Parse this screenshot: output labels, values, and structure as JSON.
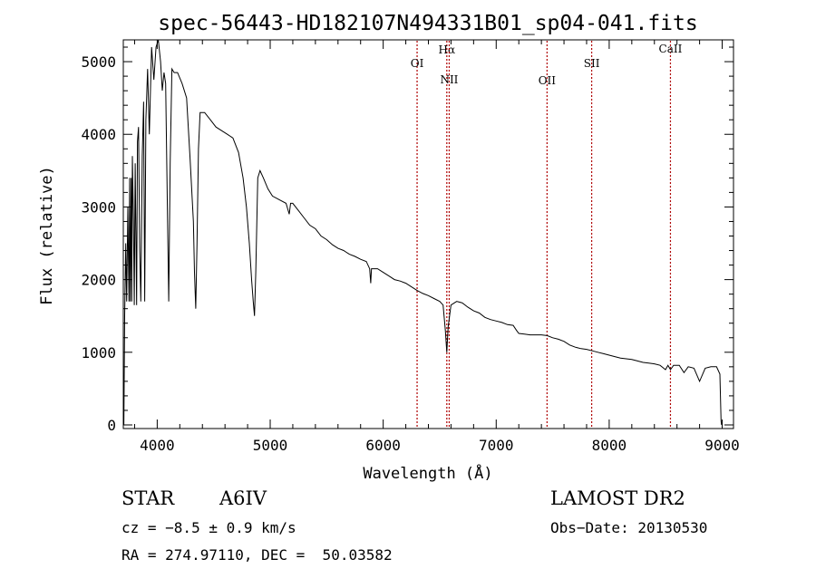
{
  "chart_data": {
    "type": "line",
    "title": "spec-56443-HD182107N494331B01_sp04-041.fits",
    "xlabel": "Wavelength (Å)",
    "ylabel": "Flux (relative)",
    "xlim": [
      3700,
      9100
    ],
    "ylim": [
      -50,
      5300
    ],
    "xticks": [
      4000,
      5000,
      6000,
      7000,
      8000,
      9000
    ],
    "yticks": [
      0,
      1000,
      2000,
      3000,
      4000,
      5000
    ],
    "grid": false,
    "line_color": "#000000",
    "marker_color": "#b00000",
    "lines": [
      {
        "label": "OI",
        "x": 6300
      },
      {
        "label": "Hα",
        "x": 6563
      },
      {
        "label": "NII",
        "x": 6584
      },
      {
        "label": "OII",
        "x": 7450
      },
      {
        "label": "SII",
        "x": 7845
      },
      {
        "label": "CaII",
        "x": 8542
      }
    ],
    "series": [
      {
        "x": [
          3705,
          3712,
          3722,
          3730,
          3740,
          3750,
          3756,
          3762,
          3770,
          3775,
          3780,
          3790,
          3797,
          3805,
          3818,
          3825,
          3835,
          3845,
          3855,
          3868,
          3880,
          3889,
          3900,
          3915,
          3930,
          3950,
          3970,
          3990,
          4010,
          4030,
          4045,
          4060,
          4075,
          4090,
          4102,
          4115,
          4130,
          4150,
          4180,
          4220,
          4260,
          4290,
          4320,
          4330,
          4341,
          4352,
          4365,
          4380,
          4420,
          4470,
          4520,
          4570,
          4620,
          4670,
          4720,
          4760,
          4790,
          4815,
          4835,
          4850,
          4861,
          4872,
          4890,
          4910,
          4940,
          4980,
          5020,
          5080,
          5140,
          5168,
          5180,
          5200,
          5250,
          5300,
          5350,
          5400,
          5450,
          5500,
          5550,
          5600,
          5650,
          5700,
          5750,
          5800,
          5850,
          5880,
          5890,
          5896,
          5910,
          5950,
          6000,
          6050,
          6100,
          6150,
          6200,
          6250,
          6300,
          6350,
          6400,
          6450,
          6500,
          6530,
          6550,
          6563,
          6575,
          6600,
          6650,
          6700,
          6750,
          6800,
          6850,
          6900,
          6950,
          7000,
          7050,
          7100,
          7150,
          7180,
          7200,
          7250,
          7300,
          7350,
          7400,
          7450,
          7500,
          7550,
          7600,
          7650,
          7700,
          7750,
          7800,
          7850,
          7900,
          7950,
          8000,
          8050,
          8100,
          8150,
          8200,
          8250,
          8300,
          8350,
          8400,
          8450,
          8498,
          8520,
          8542,
          8570,
          8620,
          8662,
          8700,
          8750,
          8800,
          8850,
          8900,
          8950,
          8980,
          8990,
          8995
        ],
        "values": [
          0,
          1500,
          2500,
          1700,
          3000,
          1700,
          3400,
          1700,
          3400,
          1700,
          3700,
          2800,
          1650,
          3600,
          1650,
          3900,
          4100,
          2400,
          1700,
          3700,
          4450,
          1700,
          4200,
          4900,
          4000,
          5200,
          4750,
          5200,
          5300,
          5000,
          4600,
          4850,
          4700,
          3000,
          1700,
          3600,
          4900,
          4850,
          4850,
          4700,
          4500,
          3700,
          2800,
          2100,
          1600,
          2500,
          3800,
          4300,
          4300,
          4200,
          4100,
          4050,
          4000,
          3950,
          3750,
          3400,
          3000,
          2500,
          2000,
          1700,
          1500,
          2100,
          3400,
          3500,
          3400,
          3250,
          3150,
          3100,
          3050,
          2900,
          3050,
          3050,
          2950,
          2850,
          2750,
          2700,
          2600,
          2550,
          2480,
          2430,
          2400,
          2350,
          2320,
          2280,
          2250,
          2150,
          1950,
          2150,
          2150,
          2150,
          2100,
          2050,
          2000,
          1980,
          1950,
          1900,
          1850,
          1810,
          1780,
          1740,
          1700,
          1650,
          1300,
          1000,
          1350,
          1650,
          1700,
          1680,
          1620,
          1570,
          1540,
          1480,
          1450,
          1430,
          1410,
          1380,
          1370,
          1300,
          1260,
          1250,
          1240,
          1240,
          1240,
          1230,
          1200,
          1180,
          1150,
          1100,
          1070,
          1050,
          1040,
          1020,
          1000,
          980,
          960,
          940,
          920,
          910,
          900,
          880,
          860,
          850,
          840,
          820,
          760,
          820,
          760,
          820,
          820,
          720,
          800,
          780,
          600,
          780,
          800,
          800,
          700,
          50,
          0
        ]
      }
    ]
  },
  "info": {
    "object_type": "STAR",
    "spectral_class": "A6IV",
    "survey": "LAMOST DR2",
    "redshift": "cz = −8.5 ± 0.9 km/s",
    "obs_date": "Obs−Date: 20130530",
    "coordinates": "RA = 274.97110, DEC =  50.03582"
  }
}
